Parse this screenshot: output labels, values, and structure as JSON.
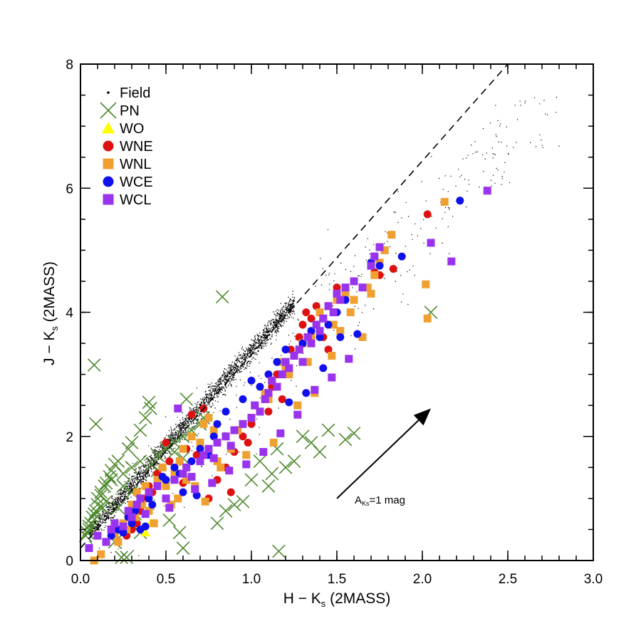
{
  "chart_data": {
    "type": "scatter",
    "title": "",
    "xlabel": {
      "main": "H − K",
      "sub": "s",
      "suffix": " (2MASS)"
    },
    "ylabel": {
      "main": "J − K",
      "sub": "s",
      "suffix": " (2MASS)"
    },
    "xlim": [
      0,
      3.0
    ],
    "ylim": [
      0,
      8
    ],
    "x_ticks": [
      "0.0",
      "0.5",
      "1.0",
      "1.5",
      "2.0",
      "2.5",
      "3.0"
    ],
    "y_ticks": [
      "0",
      "2",
      "4",
      "6",
      "8"
    ],
    "legend_position": "top-left",
    "reference_line": {
      "style": "dashed",
      "x": [
        0.0,
        2.5
      ],
      "y": [
        0.2,
        8.0
      ]
    },
    "reddening_vector": {
      "x": [
        1.5,
        2.05
      ],
      "y": [
        1.0,
        2.45
      ],
      "label_main": "A",
      "label_sub": "Ks",
      "label_suffix": "=1 mag"
    },
    "series": [
      {
        "name": "Field",
        "marker": "dot",
        "color": "#000000",
        "points": "dense band of unlabeled field stars along J-Ks ≈ 3.1·(H-Ks)+0.3 from (0.05,0.4) to (1.25,4.1), with sparse scatter out to (2.8,3.6)"
      },
      {
        "name": "PN",
        "marker": "x",
        "color": "#4f8a2f",
        "x": [
          0.08,
          0.09,
          0.4,
          0.83,
          0.62,
          0.41,
          0.38,
          0.35,
          0.3,
          0.28,
          0.22,
          0.2,
          0.18,
          0.17,
          0.15,
          0.14,
          0.12,
          0.12,
          0.1,
          0.1,
          0.09,
          0.08,
          0.07,
          0.06,
          0.05,
          0.05,
          0.04,
          0.03,
          0.18,
          0.25,
          0.3,
          0.35,
          0.45,
          0.5,
          0.55,
          0.42,
          0.6,
          0.65,
          0.7,
          0.72,
          0.55,
          0.6,
          0.45,
          0.25,
          0.3,
          0.15,
          0.22,
          0.32,
          0.85,
          0.9,
          1.0,
          1.05,
          1.1,
          1.12,
          1.15,
          1.2,
          1.25,
          1.3,
          1.35,
          1.4,
          1.45,
          1.55,
          1.6,
          2.05,
          1.16,
          0.6,
          0.8,
          0.95,
          0.35,
          0.27,
          0.2,
          0.58,
          0.52,
          0.24,
          0.13
        ],
        "y": [
          3.15,
          2.2,
          2.55,
          4.25,
          2.6,
          2.45,
          2.3,
          2.1,
          1.9,
          1.8,
          1.6,
          1.55,
          1.45,
          1.35,
          1.25,
          1.2,
          1.1,
          1.05,
          1.0,
          0.9,
          0.8,
          0.75,
          0.7,
          0.6,
          0.55,
          0.5,
          0.45,
          0.4,
          1.3,
          1.4,
          1.5,
          1.6,
          1.7,
          1.8,
          1.9,
          1.55,
          2.0,
          2.1,
          2.2,
          2.3,
          1.75,
          1.65,
          1.45,
          1.2,
          1.1,
          0.95,
          0.85,
          0.75,
          0.8,
          0.9,
          1.3,
          1.6,
          1.2,
          1.4,
          1.8,
          1.5,
          1.6,
          2.0,
          1.9,
          1.75,
          2.1,
          1.95,
          2.05,
          4.0,
          0.15,
          0.2,
          0.6,
          0.95,
          0.45,
          0.05,
          0.3,
          0.45,
          0.65,
          0.05,
          0.85
        ]
      },
      {
        "name": "WO",
        "marker": "triangle",
        "color": "#ffff00",
        "x": [
          0.38,
          0.41
        ],
        "y": [
          0.45,
          0.6
        ]
      },
      {
        "name": "WNE",
        "marker": "circle",
        "color": "#dd1111",
        "x": [
          0.5,
          0.52,
          0.65,
          0.72,
          0.62,
          0.4,
          0.38,
          0.45,
          0.55,
          0.68,
          0.8,
          0.85,
          0.9,
          0.95,
          1.0,
          1.05,
          1.08,
          1.12,
          1.15,
          1.2,
          1.23,
          1.25,
          1.28,
          1.3,
          1.32,
          1.35,
          1.38,
          1.42,
          1.45,
          1.5,
          1.55,
          1.6,
          1.72,
          1.75,
          1.83,
          2.03,
          0.3,
          0.35,
          0.42,
          0.6,
          0.75,
          0.88,
          0.98,
          1.1,
          1.18,
          1.22,
          0.27,
          0.33
        ],
        "y": [
          1.9,
          1.6,
          2.35,
          2.45,
          1.8,
          1.2,
          1.0,
          1.4,
          1.5,
          1.7,
          1.3,
          1.5,
          1.75,
          2.0,
          2.2,
          2.4,
          2.6,
          2.8,
          3.0,
          3.2,
          3.4,
          3.3,
          3.6,
          3.8,
          4.0,
          3.9,
          4.1,
          3.6,
          3.4,
          4.4,
          4.3,
          4.2,
          4.65,
          4.6,
          4.7,
          5.58,
          0.5,
          0.8,
          1.1,
          1.25,
          1.0,
          1.1,
          1.9,
          2.4,
          2.6,
          3.0,
          0.4,
          0.6
        ]
      },
      {
        "name": "WNL",
        "marker": "square",
        "color": "#f0a030",
        "x": [
          0.08,
          0.12,
          0.15,
          0.18,
          0.2,
          0.25,
          0.28,
          0.3,
          0.33,
          0.35,
          0.38,
          0.4,
          0.45,
          0.48,
          0.5,
          0.55,
          0.58,
          0.6,
          0.62,
          0.65,
          0.7,
          0.72,
          0.75,
          0.78,
          0.8,
          0.85,
          0.88,
          0.92,
          0.95,
          1.0,
          1.02,
          1.05,
          1.08,
          1.1,
          1.12,
          1.15,
          1.18,
          1.2,
          1.22,
          1.25,
          1.28,
          1.3,
          1.33,
          1.35,
          1.4,
          1.42,
          1.45,
          1.48,
          1.5,
          1.52,
          1.55,
          1.58,
          1.6,
          1.65,
          1.68,
          1.7,
          1.72,
          1.75,
          1.78,
          1.82,
          2.02,
          2.03,
          2.13,
          0.22,
          0.27,
          0.32,
          0.43,
          0.53,
          0.67,
          0.82,
          0.97,
          1.13,
          1.27,
          1.37,
          1.47,
          0.36,
          0.57,
          0.73
        ],
        "y": [
          0.0,
          0.1,
          0.3,
          0.5,
          0.4,
          0.6,
          0.7,
          0.9,
          1.1,
          1.0,
          1.2,
          0.8,
          1.3,
          1.5,
          1.2,
          1.4,
          1.6,
          1.8,
          1.3,
          2.0,
          1.9,
          2.2,
          2.3,
          2.1,
          1.6,
          2.0,
          1.8,
          2.1,
          2.2,
          2.3,
          2.5,
          2.4,
          2.7,
          2.6,
          2.9,
          2.8,
          3.2,
          3.1,
          3.0,
          3.3,
          3.4,
          3.5,
          3.2,
          3.6,
          4.0,
          3.9,
          4.1,
          3.8,
          4.2,
          3.7,
          4.3,
          4.0,
          4.2,
          3.6,
          4.4,
          4.3,
          4.6,
          4.8,
          5.0,
          5.25,
          4.45,
          3.9,
          5.78,
          0.3,
          0.5,
          0.7,
          0.6,
          0.9,
          1.2,
          1.5,
          1.7,
          1.9,
          2.5,
          2.7,
          3.3,
          0.9,
          1.0,
          0.95
        ]
      },
      {
        "name": "WCE",
        "marker": "circle",
        "color": "#1010ee",
        "x": [
          0.15,
          0.18,
          0.22,
          0.25,
          0.3,
          0.32,
          0.35,
          0.4,
          0.42,
          0.45,
          0.5,
          0.55,
          0.6,
          0.65,
          0.7,
          0.75,
          0.78,
          0.8,
          0.85,
          0.9,
          0.95,
          1.0,
          1.05,
          1.1,
          1.15,
          1.2,
          1.25,
          1.3,
          1.35,
          1.4,
          1.45,
          1.5,
          1.55,
          1.6,
          1.65,
          1.7,
          1.72,
          1.75,
          1.88,
          2.22,
          0.28,
          0.38,
          0.48,
          0.58,
          0.68,
          1.22,
          1.32,
          1.42,
          1.52,
          1.62
        ],
        "y": [
          0.3,
          0.4,
          0.5,
          0.45,
          0.6,
          0.8,
          0.5,
          1.0,
          0.9,
          1.2,
          1.3,
          1.5,
          1.1,
          1.6,
          1.8,
          1.7,
          2.0,
          2.2,
          2.4,
          2.1,
          2.6,
          2.9,
          2.8,
          3.0,
          3.2,
          3.4,
          3.3,
          3.5,
          3.7,
          3.6,
          3.8,
          4.0,
          4.2,
          4.5,
          4.4,
          4.8,
          4.9,
          4.75,
          4.9,
          5.8,
          0.7,
          0.55,
          1.35,
          1.4,
          1.05,
          2.55,
          2.7,
          3.1,
          3.6,
          3.65
        ]
      },
      {
        "name": "WCL",
        "marker": "square",
        "color": "#9933ee",
        "x": [
          0.05,
          0.1,
          0.15,
          0.18,
          0.2,
          0.25,
          0.28,
          0.3,
          0.33,
          0.35,
          0.38,
          0.4,
          0.45,
          0.5,
          0.55,
          0.6,
          0.62,
          0.65,
          0.7,
          0.72,
          0.75,
          0.78,
          0.8,
          0.85,
          0.88,
          0.9,
          0.95,
          1.0,
          1.02,
          1.05,
          1.08,
          1.1,
          1.12,
          1.15,
          1.18,
          1.2,
          1.22,
          1.25,
          1.28,
          1.3,
          1.33,
          1.35,
          1.38,
          1.4,
          1.42,
          1.45,
          1.48,
          1.5,
          1.52,
          1.55,
          1.6,
          1.65,
          1.7,
          1.72,
          1.75,
          2.05,
          2.17,
          2.38,
          0.57,
          0.67,
          0.77,
          0.87,
          0.97,
          1.07,
          1.17,
          1.27,
          1.37,
          1.47,
          1.57,
          0.52
        ],
        "y": [
          0.2,
          0.4,
          0.3,
          0.5,
          0.6,
          0.55,
          0.8,
          0.7,
          0.9,
          1.0,
          0.75,
          1.1,
          1.2,
          1.0,
          1.3,
          1.4,
          1.5,
          1.35,
          1.6,
          1.7,
          1.8,
          1.65,
          1.9,
          2.0,
          1.85,
          2.1,
          2.2,
          2.3,
          2.5,
          2.4,
          2.6,
          2.7,
          2.9,
          2.8,
          3.0,
          3.2,
          3.1,
          3.3,
          3.4,
          3.2,
          3.6,
          3.5,
          3.8,
          3.7,
          3.9,
          4.1,
          4.0,
          4.3,
          4.2,
          4.4,
          4.5,
          4.4,
          4.75,
          4.9,
          5.05,
          5.12,
          4.82,
          5.96,
          2.45,
          1.15,
          1.25,
          1.45,
          1.55,
          1.75,
          2.05,
          2.35,
          2.75,
          2.95,
          3.25,
          0.85
        ]
      }
    ]
  }
}
